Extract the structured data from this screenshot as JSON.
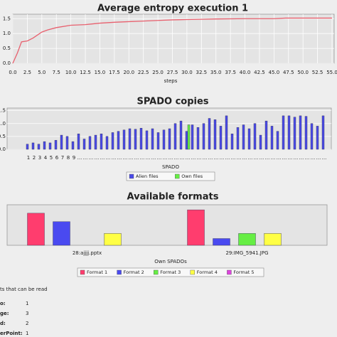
{
  "chart_data": [
    {
      "type": "line",
      "title": "Average entropy execution 1",
      "x_label": "steps",
      "x": [
        0,
        0.8,
        1.5,
        2.5,
        3.5,
        5,
        6,
        7.5,
        10,
        12.5,
        15,
        17.5,
        20,
        22.5,
        25,
        27.5,
        30,
        32.5,
        35,
        40,
        45,
        47,
        50,
        55
      ],
      "values": [
        0,
        0.35,
        0.72,
        0.75,
        0.85,
        1.05,
        1.12,
        1.2,
        1.28,
        1.3,
        1.35,
        1.38,
        1.4,
        1.42,
        1.44,
        1.46,
        1.47,
        1.48,
        1.49,
        1.5,
        1.5,
        1.52,
        1.52,
        1.52
      ],
      "color": "#e8606e",
      "xlim": [
        0,
        55
      ],
      "ylim": [
        0,
        1.65
      ],
      "xticks": [
        {
          "value": 0,
          "label": "0.0"
        },
        {
          "value": 2.5,
          "label": "2.5"
        },
        {
          "value": 5,
          "label": "5.0"
        },
        {
          "value": 7.5,
          "label": "7.5"
        },
        {
          "value": 10,
          "label": "10.0"
        },
        {
          "value": 12.5,
          "label": "12.5"
        },
        {
          "value": 15,
          "label": "15.0"
        },
        {
          "value": 17.5,
          "label": "17.5"
        },
        {
          "value": 20,
          "label": "20.0"
        },
        {
          "value": 22.5,
          "label": "22.5"
        },
        {
          "value": 25,
          "label": "25.0"
        },
        {
          "value": 27.5,
          "label": "27.5"
        },
        {
          "value": 30,
          "label": "30.0"
        },
        {
          "value": 32.5,
          "label": "32.5"
        },
        {
          "value": 35,
          "label": "35.0"
        },
        {
          "value": 37.5,
          "label": "37.5"
        },
        {
          "value": 40,
          "label": "40.0"
        },
        {
          "value": 42.5,
          "label": "42.5"
        },
        {
          "value": 45,
          "label": "45.0"
        },
        {
          "value": 47.5,
          "label": "47.5"
        },
        {
          "value": 50,
          "label": "50.0"
        },
        {
          "value": 52.5,
          "label": "52.5"
        },
        {
          "value": 55,
          "label": "55.0"
        }
      ],
      "yticks": [
        {
          "value": 0,
          "label": "0.0"
        },
        {
          "value": 0.5,
          "label": "0.5"
        },
        {
          "value": 1,
          "label": "1.0"
        },
        {
          "value": 1.5,
          "label": "1.5"
        }
      ],
      "grid": true
    },
    {
      "type": "bar",
      "title": "SPADO copies",
      "x_label": "SPADO",
      "categories": [
        "1",
        "2",
        "3",
        "4",
        "5",
        "6",
        "7",
        "8",
        "9",
        "...",
        "...",
        "...",
        "...",
        "...",
        "...",
        "...",
        "...",
        "...",
        "...",
        "...",
        "...",
        "...",
        "...",
        "...",
        "...",
        "...",
        "...",
        "...",
        "...",
        "...",
        "...",
        "...",
        "...",
        "...",
        "...",
        "...",
        "...",
        "...",
        "...",
        "...",
        "...",
        "...",
        "...",
        "...",
        "...",
        "...",
        "...",
        "...",
        "...",
        "...",
        "...",
        "...",
        "..."
      ],
      "series": [
        {
          "name": "Alien files",
          "color": "#4a4ae8",
          "values": [
            0.2,
            0.25,
            0.2,
            0.3,
            0.25,
            0.35,
            0.55,
            0.5,
            0.3,
            0.6,
            0.4,
            0.5,
            0.55,
            0.6,
            0.5,
            0.65,
            0.7,
            0.75,
            0.8,
            0.78,
            0.82,
            0.72,
            0.8,
            0.65,
            0.75,
            0.8,
            1.0,
            1.1,
            0.7,
            0.95,
            0.85,
            1.0,
            1.2,
            1.15,
            0.9,
            1.3,
            0.6,
            0.85,
            0.95,
            0.8,
            1.0,
            0.55,
            1.1,
            0.9,
            0.7,
            1.3,
            1.3,
            1.25,
            1.3,
            1.28,
            1.0,
            0.9,
            1.3
          ]
        },
        {
          "name": "Own files",
          "color": "#66ee44",
          "values": [
            0,
            0,
            0,
            0,
            0,
            0,
            0,
            0,
            0,
            0,
            0,
            0,
            0,
            0,
            0,
            0,
            0,
            0,
            0,
            0,
            0,
            0,
            0,
            0,
            0,
            0,
            0,
            0,
            0.95,
            0,
            0,
            0,
            0,
            0,
            0,
            0,
            0,
            0,
            0,
            0,
            0,
            0,
            0,
            0,
            0,
            0,
            0,
            0,
            0,
            0,
            0,
            0,
            0
          ]
        }
      ],
      "ylim": [
        0,
        1.6
      ],
      "yticks": [
        {
          "value": 0,
          "label": "0.0"
        },
        {
          "value": 0.5,
          "label": "0.5"
        },
        {
          "value": 1,
          "label": "1.0"
        },
        {
          "value": 1.5,
          "label": "1.5"
        }
      ],
      "grid": true,
      "legend": "bottom"
    },
    {
      "type": "bar",
      "title": "Available formats",
      "x_label": "Own SPADOs",
      "categories": [
        "28:ajjjj.pptx",
        "29:IMG_5941.JPG"
      ],
      "series": [
        {
          "name": "Format 1",
          "color": "#ff3d6e",
          "values": [
            0.95,
            1.05
          ]
        },
        {
          "name": "Format 2",
          "color": "#4a4af0",
          "values": [
            0.7,
            0.2
          ]
        },
        {
          "name": "Format 3",
          "color": "#66ee44",
          "values": [
            0,
            0.35
          ]
        },
        {
          "name": "Format 4",
          "color": "#ffff44",
          "values": [
            0.35,
            0.35
          ]
        },
        {
          "name": "Format 5",
          "color": "#dd44dd",
          "values": [
            0,
            0
          ]
        }
      ],
      "ylim": [
        0,
        1.2
      ],
      "grid": true,
      "legend": "bottom"
    }
  ],
  "info": {
    "title": "ts that can be read",
    "rows": [
      {
        "label": "o:",
        "value": 1
      },
      {
        "label": "ge:",
        "value": 3
      },
      {
        "label": "d:",
        "value": 2
      },
      {
        "label": "erPoint:",
        "value": 1
      }
    ]
  }
}
